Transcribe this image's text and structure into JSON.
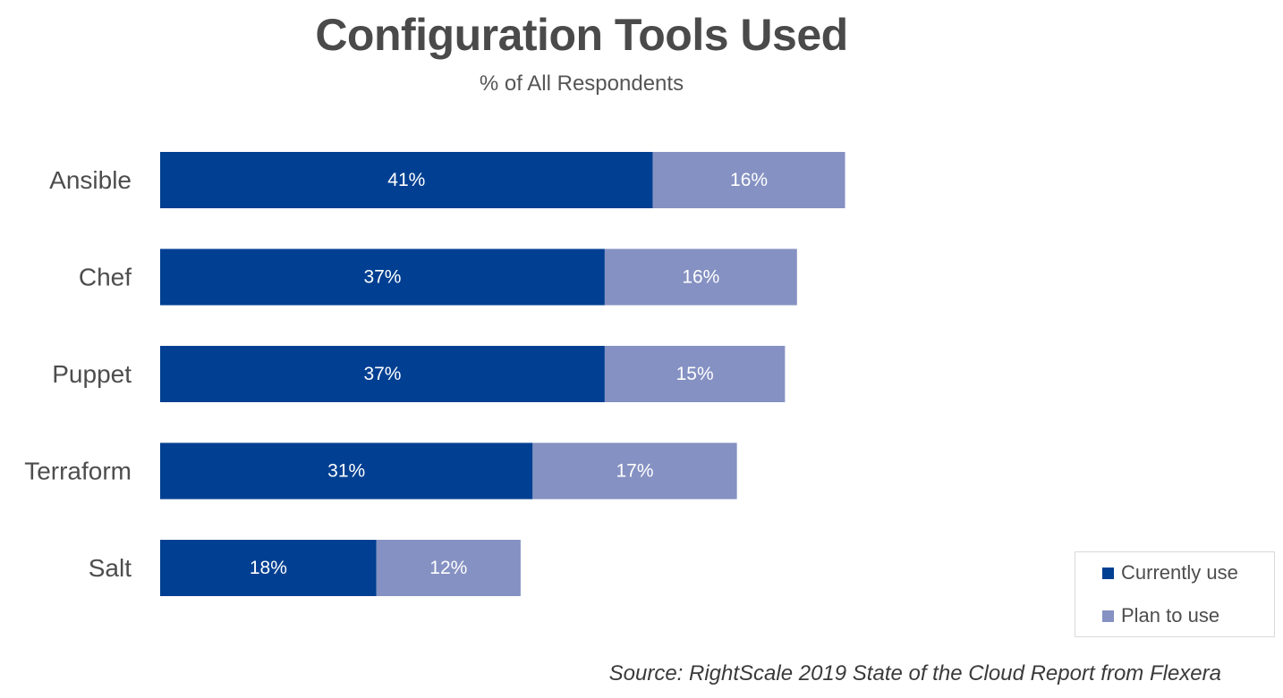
{
  "chart_data": {
    "type": "bar",
    "orientation": "horizontal",
    "stacked": true,
    "title": "Configuration Tools Used",
    "subtitle": "% of All Respondents",
    "categories": [
      "Ansible",
      "Chef",
      "Puppet",
      "Terraform",
      "Salt"
    ],
    "series": [
      {
        "name": "Currently use",
        "color": "#003f91",
        "values": [
          41,
          37,
          37,
          31,
          18
        ],
        "labels": [
          "41%",
          "37%",
          "37%",
          "31%",
          "18%"
        ]
      },
      {
        "name": "Plan to use",
        "color": "#8591c2",
        "values": [
          16,
          16,
          15,
          17,
          12
        ],
        "labels": [
          "16%",
          "16%",
          "15%",
          "17%",
          "12%"
        ]
      }
    ],
    "xlim": [
      0,
      60
    ],
    "grid": false,
    "legend_position": "bottom-right",
    "source": "Source: RightScale 2019 State of the Cloud Report from Flexera"
  }
}
